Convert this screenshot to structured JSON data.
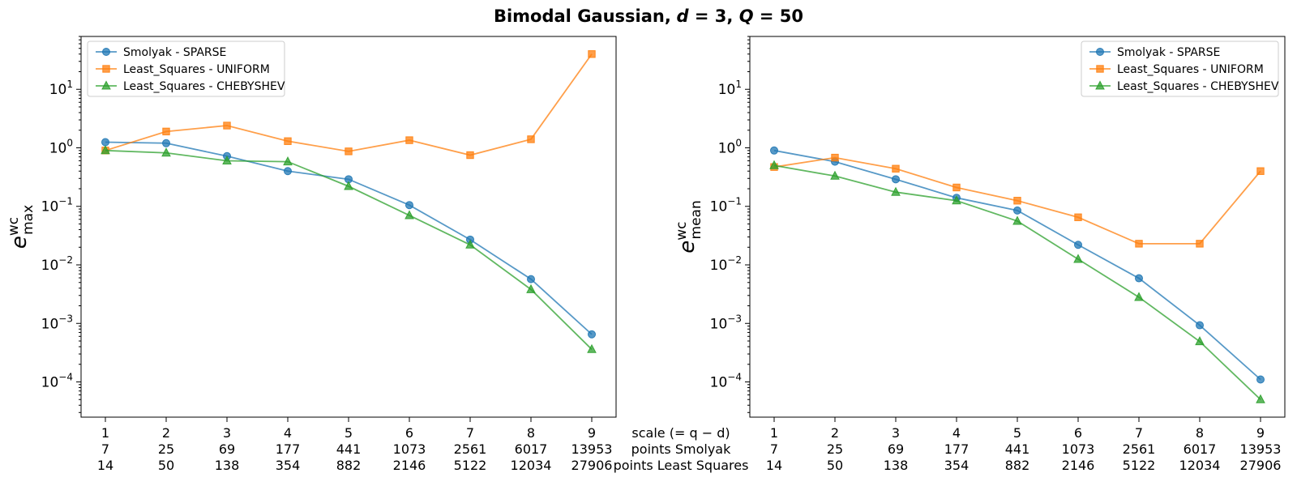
{
  "figure": {
    "title": "Bimodal Gaussian, d = 3, Q = 50",
    "title_parts": {
      "bold": "Bimodal Gaussian,",
      "d_var": "d",
      "d_val": " = 3, ",
      "q_var": "Q",
      "q_val": " = 50"
    }
  },
  "row_labels": [
    "scale (= q − d)",
    "points Smolyak",
    "points Least Squares"
  ],
  "colors": {
    "smolyak": "#1f77b4",
    "uniform": "#ff7f0e",
    "chebyshev": "#2ca02c"
  },
  "chart_data": [
    {
      "type": "line",
      "ylabel": "e_max^wc",
      "yscale": "log",
      "ylim": [
        2.5e-05,
        80
      ],
      "yticks": [
        "10^-4",
        "10^-3",
        "10^-2",
        "10^-1",
        "10^0",
        "10^1"
      ],
      "legend_position": "top-left",
      "x": [
        1,
        2,
        3,
        4,
        5,
        6,
        7,
        8,
        9
      ],
      "xtick_rows": [
        [
          "1",
          "2",
          "3",
          "4",
          "5",
          "6",
          "7",
          "8",
          "9"
        ],
        [
          "7",
          "25",
          "69",
          "177",
          "441",
          "1073",
          "2561",
          "6017",
          "13953"
        ],
        [
          "14",
          "50",
          "138",
          "354",
          "882",
          "2146",
          "5122",
          "12034",
          "27906"
        ]
      ],
      "series": [
        {
          "name": "Smolyak - SPARSE",
          "marker": "circle",
          "color": "#1f77b4",
          "values": [
            1.25,
            1.2,
            0.72,
            0.4,
            0.29,
            0.105,
            0.027,
            0.0057,
            0.00065
          ]
        },
        {
          "name": "Least_Squares - UNIFORM",
          "marker": "square",
          "color": "#ff7f0e",
          "values": [
            0.9,
            1.9,
            2.4,
            1.3,
            0.87,
            1.35,
            0.75,
            1.4,
            40
          ]
        },
        {
          "name": "Least_Squares - CHEBYSHEV",
          "marker": "triangle",
          "color": "#2ca02c",
          "values": [
            0.9,
            0.82,
            0.6,
            0.58,
            0.22,
            0.07,
            0.022,
            0.0038,
            0.00036
          ]
        }
      ]
    },
    {
      "type": "line",
      "ylabel": "e_mean^wc",
      "yscale": "log",
      "ylim": [
        2.5e-05,
        80
      ],
      "yticks": [
        "10^-4",
        "10^-3",
        "10^-2",
        "10^-1",
        "10^0",
        "10^1"
      ],
      "legend_position": "top-right",
      "x": [
        1,
        2,
        3,
        4,
        5,
        6,
        7,
        8,
        9
      ],
      "xtick_rows": [
        [
          "1",
          "2",
          "3",
          "4",
          "5",
          "6",
          "7",
          "8",
          "9"
        ],
        [
          "7",
          "25",
          "69",
          "177",
          "441",
          "1073",
          "2561",
          "6017",
          "13953"
        ],
        [
          "14",
          "50",
          "138",
          "354",
          "882",
          "2146",
          "5122",
          "12034",
          "27906"
        ]
      ],
      "series": [
        {
          "name": "Smolyak - SPARSE",
          "marker": "circle",
          "color": "#1f77b4",
          "values": [
            0.9,
            0.58,
            0.29,
            0.14,
            0.085,
            0.022,
            0.0059,
            0.00093,
            0.00011
          ]
        },
        {
          "name": "Least_Squares - UNIFORM",
          "marker": "square",
          "color": "#ff7f0e",
          "values": [
            0.47,
            0.68,
            0.44,
            0.21,
            0.125,
            0.065,
            0.023,
            0.023,
            0.4
          ]
        },
        {
          "name": "Least_Squares - CHEBYSHEV",
          "marker": "triangle",
          "color": "#2ca02c",
          "values": [
            0.5,
            0.33,
            0.175,
            0.125,
            0.056,
            0.0125,
            0.0028,
            0.00049,
            5e-05
          ]
        }
      ]
    }
  ]
}
